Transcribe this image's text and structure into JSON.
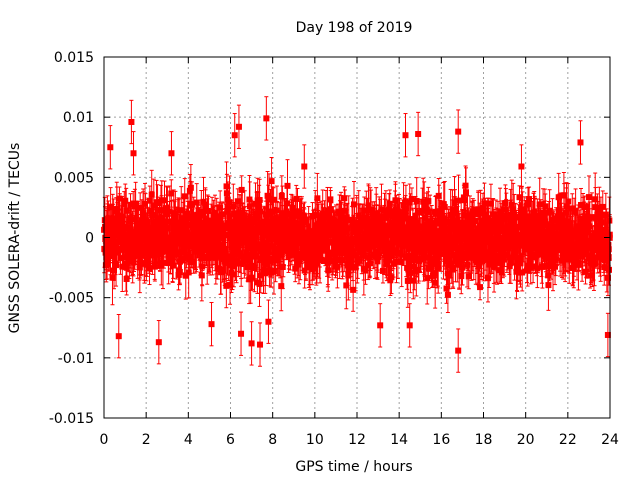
{
  "chart_data": {
    "type": "scatter",
    "title": "Day 198 of 2019",
    "xlabel": "GPS time / hours",
    "ylabel": "GNSS SOLERA-drift / TECUs",
    "xlim": [
      0,
      24
    ],
    "ylim": [
      -0.015,
      0.015
    ],
    "x_ticks": [
      0,
      2,
      4,
      6,
      8,
      10,
      12,
      14,
      16,
      18,
      20,
      22,
      24
    ],
    "x_tick_labels": [
      "0",
      "2",
      "4",
      "6",
      "8",
      "10",
      "12",
      "14",
      "16",
      "18",
      "20",
      "22",
      "24"
    ],
    "y_ticks": [
      -0.015,
      -0.01,
      -0.005,
      0,
      0.005,
      0.01,
      0.015
    ],
    "y_tick_labels": [
      "-0.015",
      "-0.01",
      "-0.005",
      "0",
      "0.005",
      "0.01",
      "0.015"
    ],
    "grid": true,
    "legend": "none",
    "series": [
      {
        "color": "#ff0000",
        "marker": "square",
        "error_bars": true,
        "x_range": [
          0,
          24
        ],
        "typical_spread": 0.0025,
        "typical_error": 0.0015,
        "notable_points": [
          {
            "x": 0.3,
            "y": 0.0075
          },
          {
            "x": 1.3,
            "y": 0.0096
          },
          {
            "x": 1.4,
            "y": 0.007
          },
          {
            "x": 0.7,
            "y": -0.0082
          },
          {
            "x": 2.6,
            "y": -0.0087
          },
          {
            "x": 3.2,
            "y": 0.007
          },
          {
            "x": 6.2,
            "y": 0.0085
          },
          {
            "x": 6.4,
            "y": 0.0092
          },
          {
            "x": 6.5,
            "y": -0.008
          },
          {
            "x": 7.0,
            "y": -0.0088
          },
          {
            "x": 7.4,
            "y": -0.0089
          },
          {
            "x": 7.7,
            "y": 0.0099
          },
          {
            "x": 7.8,
            "y": -0.007
          },
          {
            "x": 14.3,
            "y": 0.0085
          },
          {
            "x": 14.9,
            "y": 0.0086
          },
          {
            "x": 14.5,
            "y": -0.0073
          },
          {
            "x": 13.1,
            "y": -0.0073
          },
          {
            "x": 16.8,
            "y": 0.0088
          },
          {
            "x": 16.8,
            "y": -0.0094
          },
          {
            "x": 22.6,
            "y": 0.0079
          },
          {
            "x": 23.9,
            "y": -0.0081
          },
          {
            "x": 5.1,
            "y": -0.0072
          },
          {
            "x": 9.5,
            "y": 0.0059
          },
          {
            "x": 19.8,
            "y": 0.0059
          }
        ]
      }
    ]
  }
}
